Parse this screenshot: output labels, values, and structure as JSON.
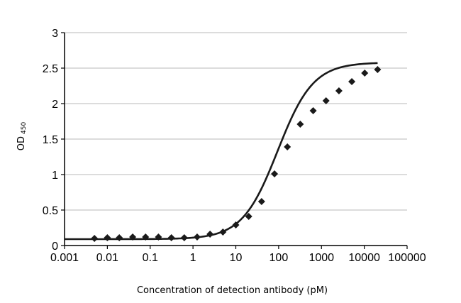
{
  "chart_data": {
    "type": "scatter",
    "xlabel": "Concentration of detection antibody (pM)",
    "ylabel": "OD",
    "ylabel_subscript": "450",
    "xscale": "log",
    "xlim": [
      0.001,
      100000
    ],
    "ylim": [
      0,
      3
    ],
    "grid": "horizontal",
    "legend": "none",
    "x_tick_labels": [
      "0.001",
      "0.01",
      "0.1",
      "1",
      "10",
      "100",
      "1000",
      "10000",
      "100000"
    ],
    "y_tick_labels": [
      "0",
      "0.5",
      "1",
      "1.5",
      "2",
      "2.5",
      "3"
    ],
    "series": [
      {
        "marker": "diamond",
        "color": "#1a1a1a",
        "x": [
          0.005,
          0.01,
          0.019,
          0.039,
          0.078,
          0.156,
          0.313,
          0.625,
          1.25,
          2.5,
          5,
          10,
          20,
          40,
          80,
          160,
          320,
          640,
          1280,
          2560,
          5120,
          10240,
          20480
        ],
        "y": [
          0.1,
          0.11,
          0.11,
          0.12,
          0.12,
          0.12,
          0.11,
          0.11,
          0.12,
          0.16,
          0.19,
          0.29,
          0.41,
          0.62,
          1.01,
          1.39,
          1.71,
          1.9,
          2.04,
          2.18,
          2.31,
          2.43,
          2.48
        ]
      }
    ],
    "fit_line": {
      "type": "4PL",
      "color": "#1a1a1a",
      "bottom": 0.09,
      "top": 2.58,
      "ec50": 95,
      "hill": 1.05
    }
  }
}
